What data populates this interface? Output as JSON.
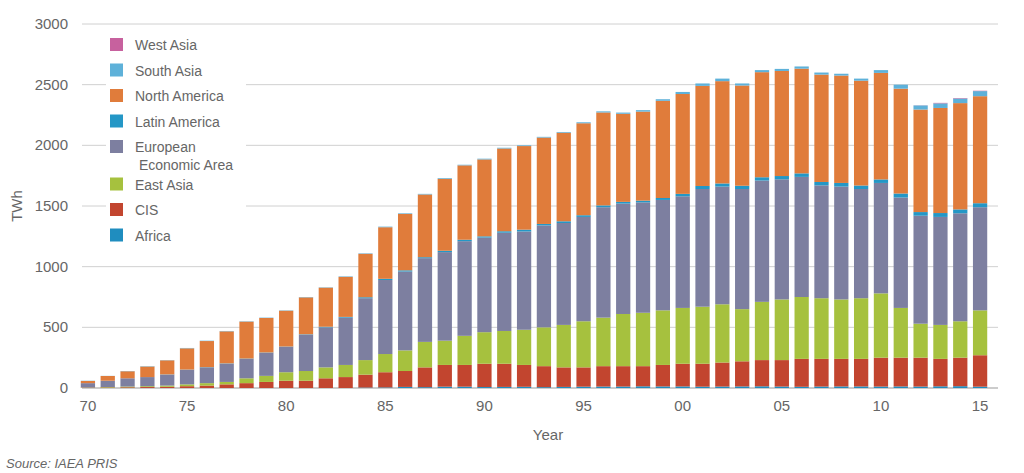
{
  "chart_data": {
    "type": "bar",
    "stacked": true,
    "grid": true,
    "legend": "top-left",
    "x_label": "Year",
    "y_label": "TWh",
    "source": "Source: IAEA PRIS",
    "categories": [
      "70",
      null,
      null,
      null,
      null,
      "75",
      null,
      null,
      null,
      null,
      "80",
      null,
      null,
      null,
      null,
      "85",
      null,
      null,
      null,
      null,
      "90",
      null,
      null,
      null,
      null,
      "95",
      null,
      null,
      null,
      null,
      "00",
      null,
      null,
      null,
      null,
      "05",
      null,
      null,
      null,
      null,
      "10",
      null,
      null,
      null,
      null,
      "15"
    ],
    "ylim": [
      0,
      3000
    ],
    "yticks": [
      0,
      500,
      1000,
      1500,
      2000,
      2500,
      3000
    ],
    "series": [
      {
        "name": "West Asia",
        "color": "#c7619e",
        "values": [
          0,
          0,
          0,
          0,
          0,
          0,
          0,
          0,
          0,
          0,
          0,
          0,
          0,
          0,
          0,
          0,
          0,
          0,
          0,
          0,
          0,
          0,
          0,
          0,
          0,
          0,
          0,
          0,
          0,
          0,
          0,
          0,
          0,
          0,
          0,
          0,
          0,
          0,
          0,
          0,
          0,
          0,
          1,
          4,
          4,
          3
        ]
      },
      {
        "name": "South Asia",
        "color": "#5eb1d9",
        "values": [
          2,
          1,
          2,
          3,
          2,
          3,
          3,
          3,
          3,
          3,
          3,
          3,
          3,
          4,
          4,
          5,
          5,
          5,
          6,
          5,
          6,
          6,
          6,
          6,
          6,
          8,
          9,
          10,
          12,
          13,
          17,
          20,
          21,
          17,
          17,
          17,
          18,
          17,
          15,
          17,
          23,
          33,
          34,
          38,
          38,
          42
        ]
      },
      {
        "name": "North America",
        "color": "#e07c3b",
        "values": [
          18,
          39,
          58,
          87,
          116,
          175,
          215,
          264,
          304,
          284,
          295,
          304,
          322,
          330,
          358,
          425,
          465,
          517,
          593,
          613,
          634,
          682,
          689,
          712,
          730,
          758,
          766,
          726,
          734,
          801,
          823,
          825,
          843,
          826,
          866,
          866,
          863,
          885,
          885,
          864,
          878,
          864,
          845,
          866,
          876,
          882
        ]
      },
      {
        "name": "Latin America",
        "color": "#2497c6",
        "values": [
          0,
          0,
          0,
          0,
          2,
          2,
          2,
          3,
          3,
          3,
          2,
          3,
          5,
          6,
          8,
          10,
          10,
          8,
          11,
          12,
          10,
          12,
          15,
          12,
          14,
          14,
          15,
          14,
          14,
          16,
          20,
          25,
          26,
          27,
          27,
          27,
          29,
          28,
          30,
          29,
          29,
          33,
          30,
          32,
          32,
          33
        ]
      },
      {
        "name": "European Economic Area",
        "color": "#7d7fa0",
        "values": [
          35,
          52,
          68,
          75,
          90,
          120,
          130,
          150,
          160,
          190,
          210,
          300,
          330,
          390,
          510,
          610,
          650,
          690,
          730,
          780,
          780,
          810,
          810,
          840,
          840,
          860,
          910,
          910,
          910,
          910,
          920,
          970,
          970,
          990,
          1000,
          990,
          990,
          930,
          930,
          900,
          910,
          910,
          890,
          890,
          890,
          850
        ]
      },
      {
        "name": "East Asia",
        "color": "#a6c13e",
        "values": [
          2,
          4,
          6,
          7,
          10,
          15,
          20,
          20,
          40,
          50,
          70,
          80,
          90,
          100,
          120,
          150,
          170,
          210,
          200,
          240,
          260,
          270,
          290,
          320,
          350,
          380,
          400,
          430,
          440,
          450,
          460,
          470,
          480,
          430,
          480,
          500,
          510,
          500,
          490,
          500,
          530,
          410,
          280,
          280,
          300,
          370
        ]
      },
      {
        "name": "CIS",
        "color": "#c2452f",
        "values": [
          3,
          4,
          6,
          8,
          10,
          15,
          20,
          30,
          40,
          50,
          60,
          60,
          80,
          90,
          106,
          125,
          131,
          163,
          179,
          179,
          192,
          191,
          180,
          173,
          161,
          159,
          168,
          168,
          166,
          177,
          187,
          189,
          198,
          207,
          216,
          218,
          230,
          228,
          227,
          227,
          238,
          237,
          238,
          226,
          235,
          259
        ]
      },
      {
        "name": "Africa",
        "color": "#1f8dbf",
        "values": [
          0,
          0,
          0,
          0,
          0,
          0,
          0,
          0,
          0,
          0,
          0,
          0,
          0,
          0,
          4,
          5,
          9,
          7,
          11,
          11,
          8,
          9,
          10,
          7,
          9,
          11,
          12,
          12,
          14,
          13,
          13,
          11,
          12,
          13,
          14,
          12,
          10,
          12,
          13,
          13,
          12,
          13,
          12,
          14,
          15,
          11
        ]
      }
    ]
  }
}
